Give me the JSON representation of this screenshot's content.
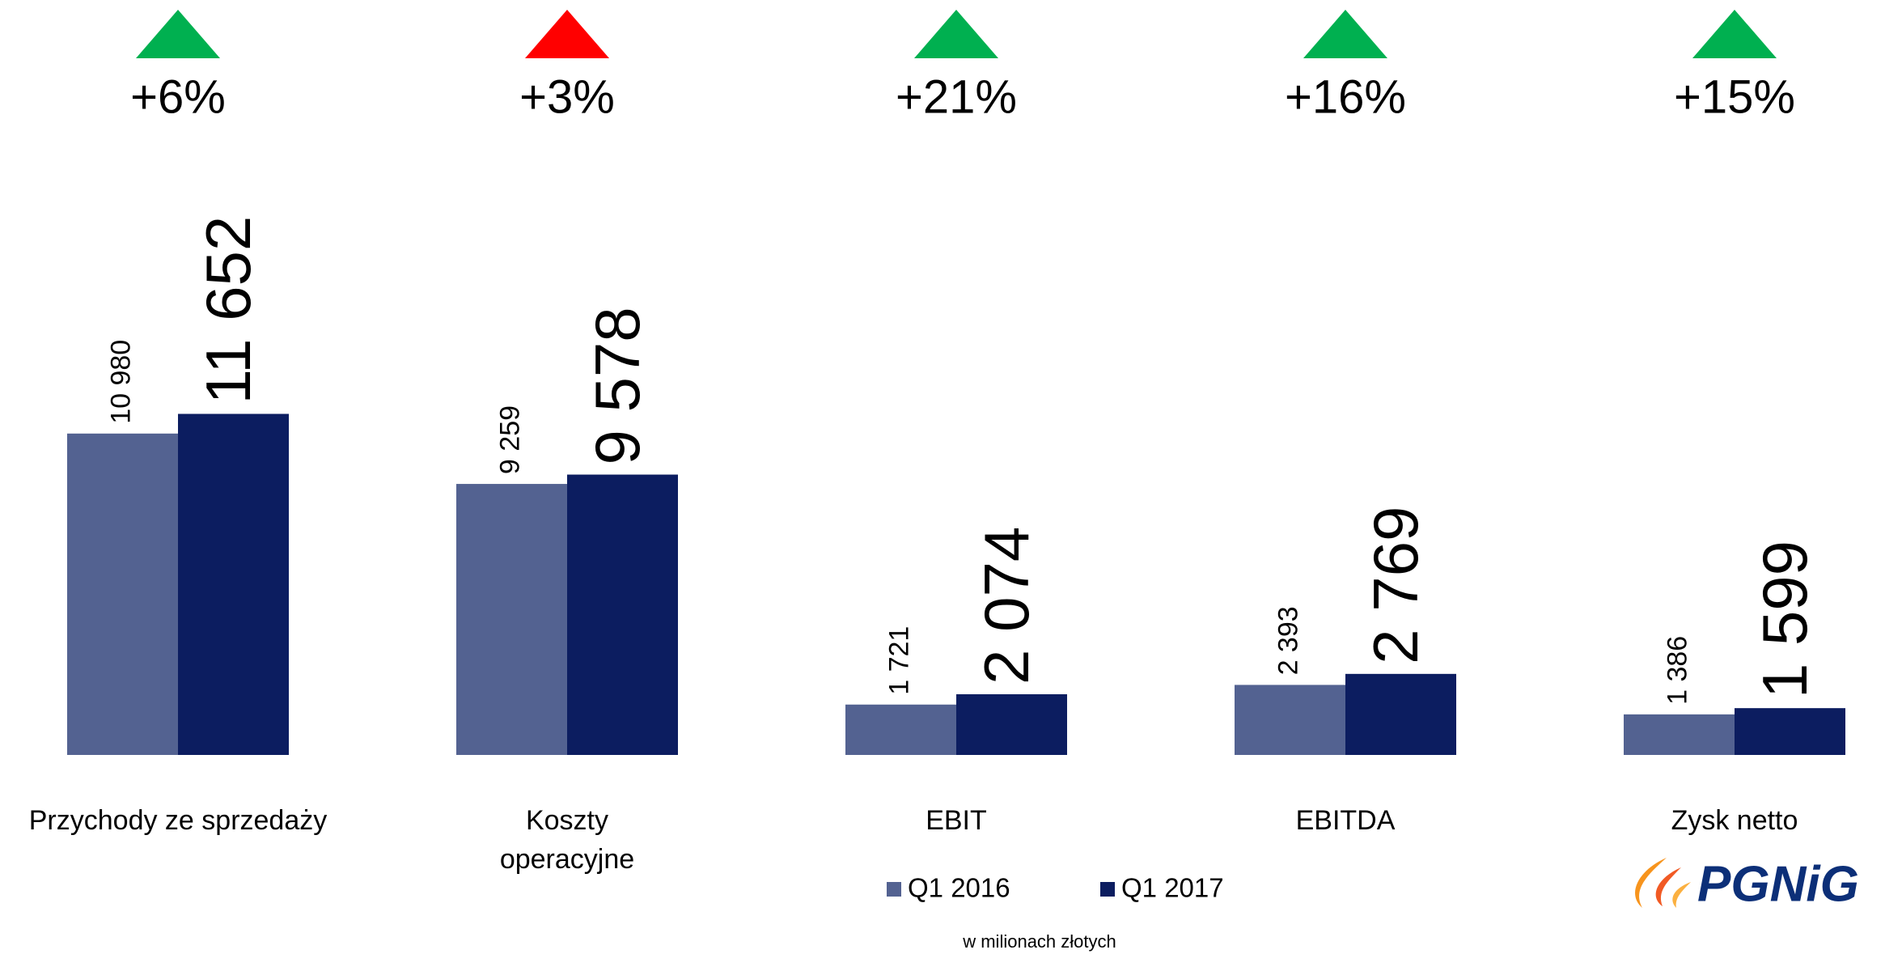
{
  "chart_data": {
    "type": "bar",
    "categories": [
      "Przychody ze sprzedaży",
      "Koszty operacyjne",
      "EBIT",
      "EBITDA",
      "Zysk netto"
    ],
    "series": [
      {
        "name": "Q1 2016",
        "color": "#536291",
        "values": [
          10980,
          9259,
          1721,
          2393,
          1386
        ],
        "value_labels": [
          "10 980",
          "9 259",
          "1 721",
          "2 393",
          "1 386"
        ]
      },
      {
        "name": "Q1 2017",
        "color": "#0c1d60",
        "values": [
          11652,
          9578,
          2074,
          2769,
          1599
        ],
        "value_labels": [
          "11 652",
          "9 578",
          "2 074",
          "2 769",
          "1 599"
        ]
      }
    ],
    "changes": [
      {
        "label": "+6%",
        "color": "#00b050"
      },
      {
        "label": "+3%",
        "color": "#ff0000"
      },
      {
        "label": "+21%",
        "color": "#00b050"
      },
      {
        "label": "+16%",
        "color": "#00b050"
      },
      {
        "label": "+15%",
        "color": "#00b050"
      }
    ],
    "note": "w milionach złotych",
    "logo": "PGNiG"
  }
}
